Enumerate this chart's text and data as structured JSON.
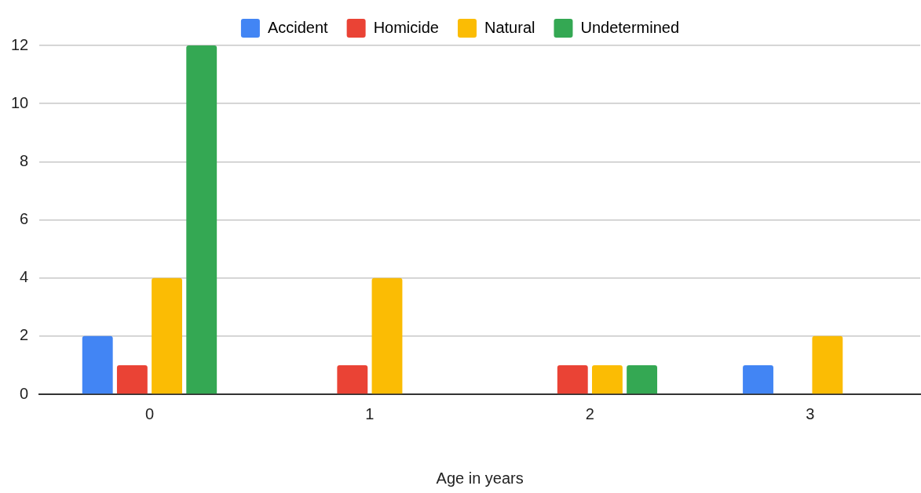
{
  "chart_data": {
    "type": "bar",
    "xlabel": "Age in years",
    "categories": [
      "0",
      "1",
      "2",
      "3"
    ],
    "series": [
      {
        "name": "Accident",
        "color": "#4285f4",
        "values": [
          2,
          null,
          null,
          1
        ]
      },
      {
        "name": "Homicide",
        "color": "#ea4335",
        "values": [
          1,
          1,
          1,
          null
        ]
      },
      {
        "name": "Natural",
        "color": "#fbbc04",
        "values": [
          4,
          4,
          1,
          2
        ]
      },
      {
        "name": "Undetermined",
        "color": "#34a853",
        "values": [
          12,
          null,
          1,
          null
        ]
      }
    ],
    "ylim": [
      0,
      12
    ],
    "yticks": [
      0,
      2,
      4,
      6,
      8,
      10,
      12
    ],
    "grid": "y",
    "legend": "top"
  }
}
